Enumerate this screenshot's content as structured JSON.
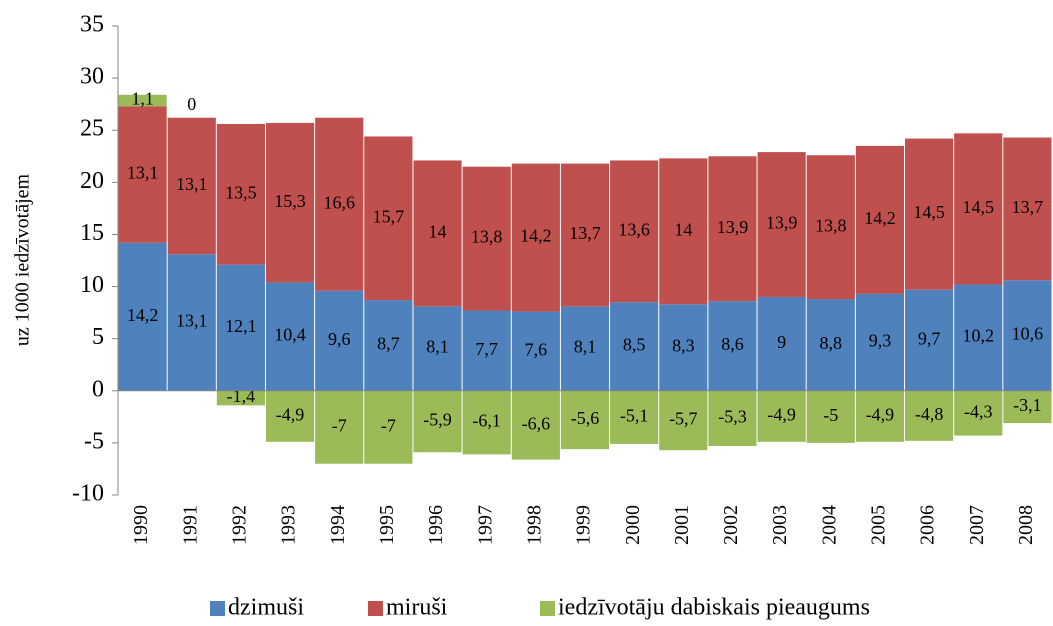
{
  "chart_data": {
    "type": "bar",
    "stacked": true,
    "y_label": "uz 1000 iedzīvotājem",
    "categories": [
      "1990",
      "1991",
      "1992",
      "1993",
      "1994",
      "1995",
      "1996",
      "1997",
      "1998",
      "1999",
      "2000",
      "2001",
      "2002",
      "2003",
      "2004",
      "2005",
      "2006",
      "2007",
      "2008"
    ],
    "series": [
      {
        "name": "dzimuši",
        "color": "#4f81bd",
        "values": [
          14.2,
          13.1,
          12.1,
          10.4,
          9.6,
          8.7,
          8.1,
          7.7,
          7.6,
          8.1,
          8.5,
          8.3,
          8.6,
          9,
          8.8,
          9.3,
          9.7,
          10.2,
          10.6
        ],
        "value_labels": [
          "14,2",
          "13,1",
          "12,1",
          "10,4",
          "9,6",
          "8,7",
          "8,1",
          "7,7",
          "7,6",
          "8,1",
          "8,5",
          "8,3",
          "8,6",
          "9",
          "8,8",
          "9,3",
          "9,7",
          "10,2",
          "10,6"
        ]
      },
      {
        "name": "miruši",
        "color": "#c0504d",
        "values": [
          13.1,
          13.1,
          13.5,
          15.3,
          16.6,
          15.7,
          14,
          13.8,
          14.2,
          13.7,
          13.6,
          14,
          13.9,
          13.9,
          13.8,
          14.2,
          14.5,
          14.5,
          13.7
        ],
        "value_labels": [
          "13,1",
          "13,1",
          "13,5",
          "15,3",
          "16,6",
          "15,7",
          "14",
          "13,8",
          "14,2",
          "13,7",
          "13,6",
          "14",
          "13,9",
          "13,9",
          "13,8",
          "14,2",
          "14,5",
          "14,5",
          "13,7"
        ]
      },
      {
        "name": "iedzīvotāju dabiskais pieaugums",
        "color": "#9bbb59",
        "values": [
          1.1,
          0,
          -1.4,
          -4.9,
          -7,
          -7,
          -5.9,
          -6.1,
          -6.6,
          -5.6,
          -5.1,
          -5.7,
          -5.3,
          -4.9,
          -5,
          -4.9,
          -4.8,
          -4.3,
          -3.1
        ],
        "value_labels": [
          "1,1",
          "0",
          "-1,4",
          "-4,9",
          "-7",
          "-7",
          "-5,9",
          "-6,1",
          "-6,6",
          "-5,6",
          "-5,1",
          "-5,7",
          "-5,3",
          "-4,9",
          "-5",
          "-4,9",
          "-4,8",
          "-4,3",
          "-3,1"
        ]
      }
    ],
    "ylim": [
      -10,
      35
    ],
    "yticks": [
      -10,
      -5,
      0,
      5,
      10,
      15,
      20,
      25,
      30,
      35
    ],
    "grid": false,
    "legend": "bottom"
  }
}
